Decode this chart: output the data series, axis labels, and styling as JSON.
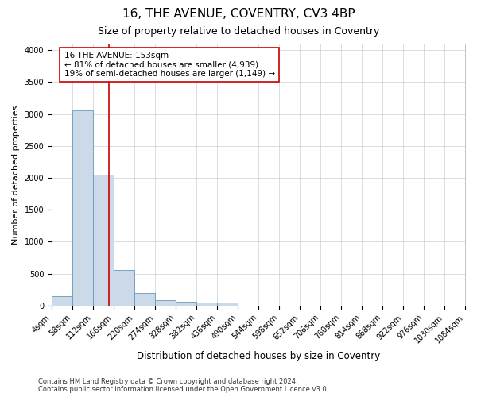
{
  "title": "16, THE AVENUE, COVENTRY, CV3 4BP",
  "subtitle": "Size of property relative to detached houses in Coventry",
  "xlabel": "Distribution of detached houses by size in Coventry",
  "ylabel": "Number of detached properties",
  "footer_line1": "Contains HM Land Registry data © Crown copyright and database right 2024.",
  "footer_line2": "Contains public sector information licensed under the Open Government Licence v3.0.",
  "property_size": 153,
  "annotation_line1": "16 THE AVENUE: 153sqm",
  "annotation_line2": "← 81% of detached houses are smaller (4,939)",
  "annotation_line3": "19% of semi-detached houses are larger (1,149) →",
  "bin_edges": [
    4,
    58,
    112,
    166,
    220,
    274,
    328,
    382,
    436,
    490,
    544,
    598,
    652,
    706,
    760,
    814,
    868,
    922,
    976,
    1030,
    1084
  ],
  "bin_heights": [
    150,
    3050,
    2050,
    560,
    200,
    80,
    55,
    50,
    50,
    0,
    0,
    0,
    0,
    0,
    0,
    0,
    0,
    0,
    0,
    0
  ],
  "bar_color": "#ccd9e8",
  "bar_edge_color": "#6699bb",
  "vline_color": "#cc0000",
  "vline_x": 153,
  "annotation_box_edgecolor": "#cc0000",
  "grid_color": "#c8d0dc",
  "ylim": [
    0,
    4100
  ],
  "yticks": [
    0,
    500,
    1000,
    1500,
    2000,
    2500,
    3000,
    3500,
    4000
  ],
  "bg_color": "#ffffff",
  "title_fontsize": 11,
  "subtitle_fontsize": 9,
  "tick_label_fontsize": 7,
  "ylabel_fontsize": 8,
  "xlabel_fontsize": 8.5,
  "annotation_fontsize": 7.5,
  "footer_fontsize": 6
}
